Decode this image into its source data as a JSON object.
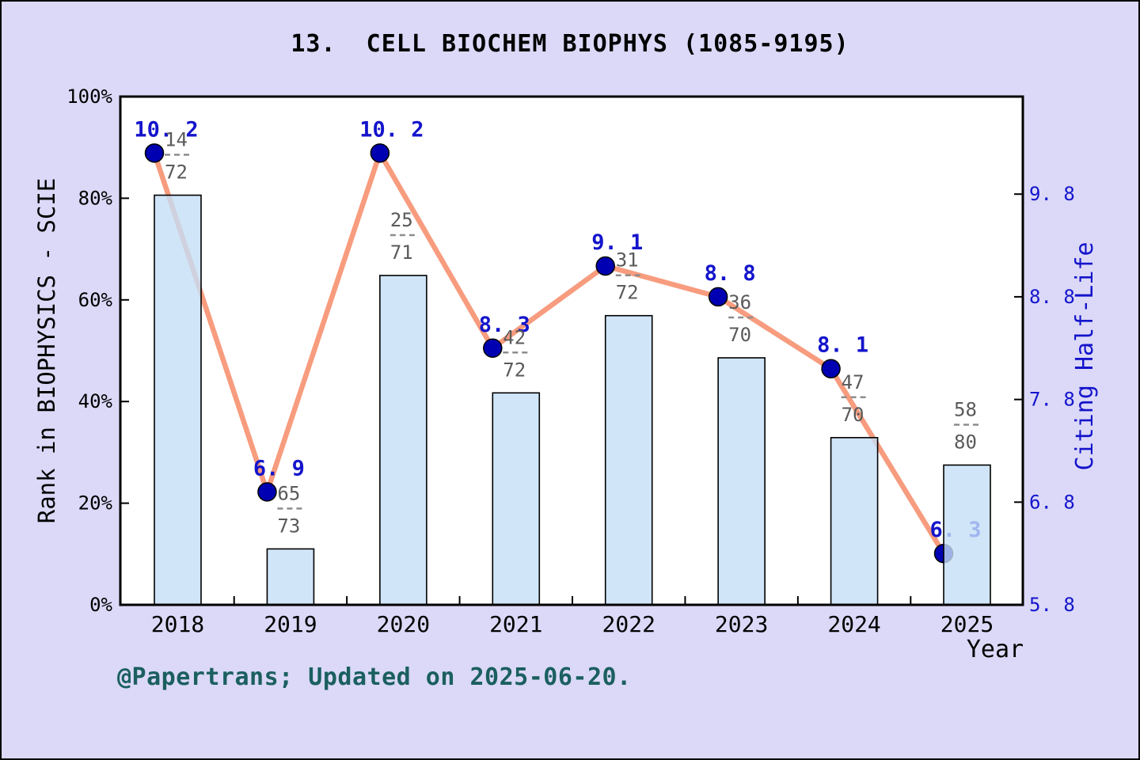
{
  "title": "13. CELL BIOCHEM BIOPHYS (1085-9195)",
  "footer": "@Papertrans; Updated on 2025-06-20.",
  "chart_data": {
    "type": "combo",
    "x": [
      2018,
      2019,
      2020,
      2021,
      2022,
      2023,
      2024,
      2025
    ],
    "x_tick_labels": [
      "2018",
      "2019",
      "2020",
      "2021",
      "2022",
      "2023",
      "2024",
      "2025"
    ],
    "xlabel": "Year",
    "series": [
      {
        "name": "Rank in BIOPHYSICS - SCIE",
        "type": "bar",
        "axis": "left",
        "rank_fractions": [
          {
            "rank": 14,
            "total": 72
          },
          {
            "rank": 65,
            "total": 73
          },
          {
            "rank": 25,
            "total": 71
          },
          {
            "rank": 42,
            "total": 72
          },
          {
            "rank": 31,
            "total": 72
          },
          {
            "rank": 36,
            "total": 70
          },
          {
            "rank": 47,
            "total": 70
          },
          {
            "rank": 58,
            "total": 80
          }
        ],
        "fraction_labels": [
          "14/72",
          "65/73",
          "25/71",
          "42/72",
          "31/72",
          "36/70",
          "47/70",
          "58/80"
        ],
        "values_percent": [
          80.6,
          11.0,
          64.8,
          41.7,
          56.9,
          48.6,
          32.9,
          27.5
        ]
      },
      {
        "name": "Citing Half-Life",
        "type": "line",
        "axis": "right",
        "values": [
          10.2,
          6.9,
          10.2,
          8.3,
          9.1,
          8.8,
          8.1,
          6.3
        ],
        "value_labels": [
          "10.2",
          "6.9",
          "10.2",
          "8.3",
          "9.1",
          "8.8",
          "8.1",
          "6.3"
        ]
      }
    ],
    "left_axis": {
      "label": "Rank in BIOPHYSICS - SCIE",
      "min": 0,
      "max": 100,
      "ticks": [
        0,
        20,
        40,
        60,
        80,
        100
      ],
      "tick_labels": [
        "0%",
        "20%",
        "40%",
        "60%",
        "80%",
        "100%"
      ]
    },
    "right_axis": {
      "label": "Citing Half-Life",
      "min": 5.8,
      "max": 10.75,
      "ticks": [
        5.8,
        6.8,
        7.8,
        8.8,
        9.8
      ],
      "tick_labels": [
        "5.8",
        "6.8",
        "7.8",
        "8.8",
        "9.8"
      ]
    },
    "grid": false,
    "legend": "none",
    "colors": {
      "background": "#dbd9f7",
      "plot_background": "#ffffff",
      "axis": "#000000",
      "bar_fill": "rgba(196,222,246,0.8)",
      "bar_border": "#000000",
      "line": "#f79c7e",
      "marker_fill": "#0000b2",
      "marker_border": "#000000",
      "value_label": "#1414cc",
      "right_axis_text": "#1414cc",
      "fraction_text": "#5a5a5a",
      "fraction_dash": "#8c8c8c",
      "footer_text": "#1b5f60",
      "title_text": "#000000"
    }
  }
}
